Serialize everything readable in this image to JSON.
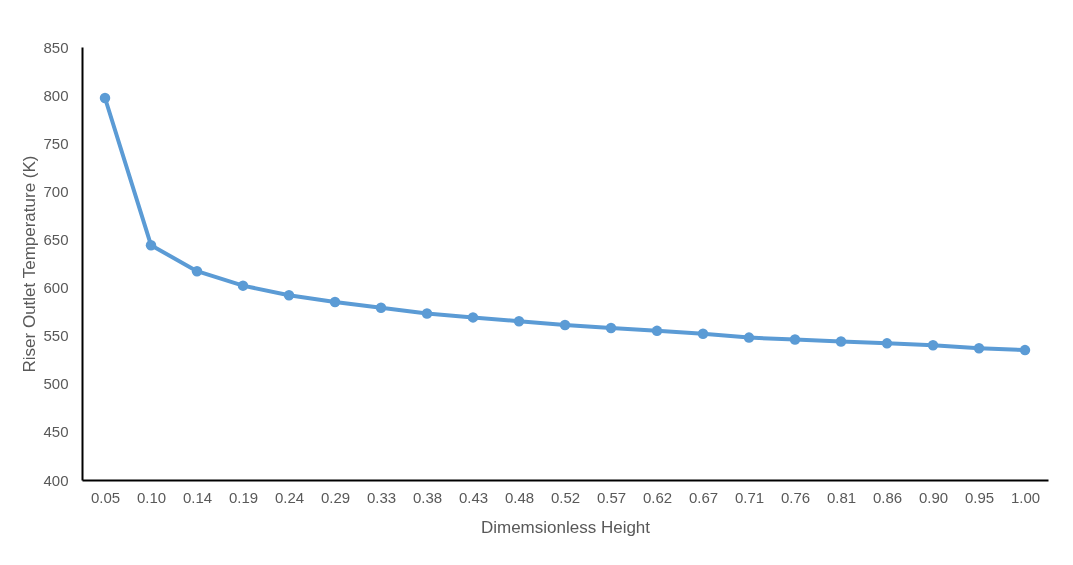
{
  "chart_data": {
    "type": "line",
    "xlabel": "Dimemsionless Height",
    "ylabel": "Riser Outlet Temperature (K)",
    "categories": [
      "0.05",
      "0.10",
      "0.14",
      "0.19",
      "0.24",
      "0.29",
      "0.33",
      "0.38",
      "0.43",
      "0.48",
      "0.52",
      "0.57",
      "0.62",
      "0.67",
      "0.71",
      "0.76",
      "0.81",
      "0.86",
      "0.90",
      "0.95",
      "1.00"
    ],
    "series": [
      {
        "color": "#5b9bd5",
        "values": [
          797,
          644,
          617,
          602,
          592,
          585,
          579,
          573,
          569,
          565,
          561,
          558,
          555,
          552,
          548,
          546,
          544,
          542,
          540,
          537,
          535
        ]
      }
    ],
    "ylim": [
      400,
      850
    ],
    "yticks": [
      400,
      450,
      500,
      550,
      600,
      650,
      700,
      750,
      800,
      850
    ],
    "grid": false,
    "marker": "circle",
    "line_style": "solid"
  }
}
